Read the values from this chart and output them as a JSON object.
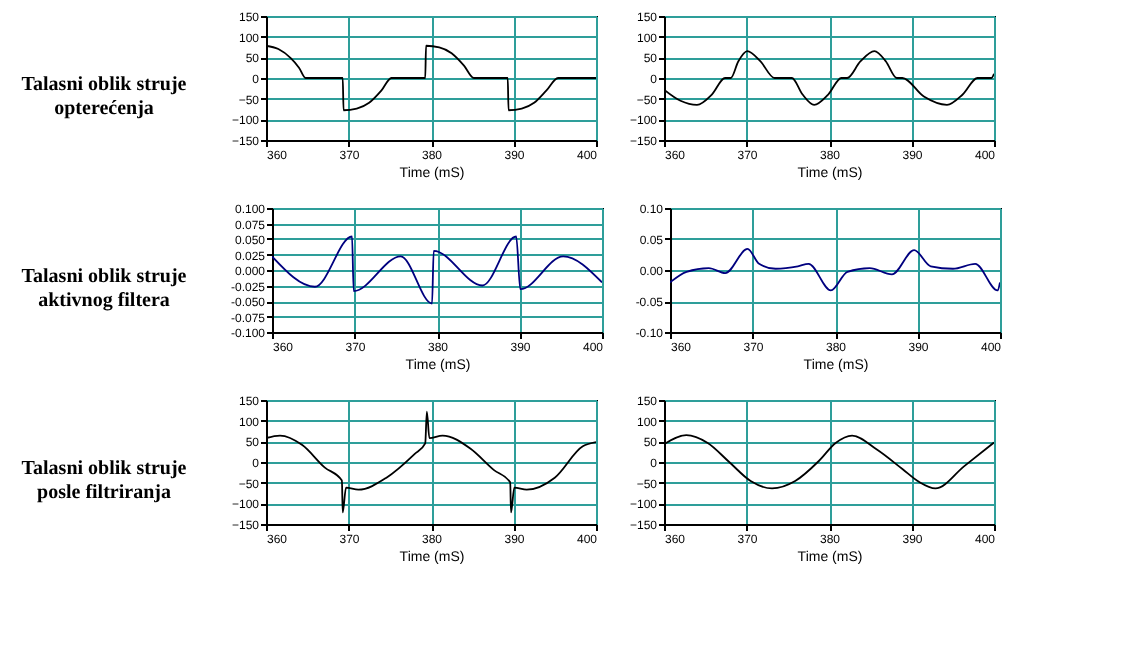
{
  "chart_data": [
    {
      "type": "other",
      "title": "Talasni oblik struje\nopterećenja"
    },
    {
      "type": "line",
      "xlabel": "Time (mS)",
      "color": "#000000",
      "grid": true,
      "xlim": [
        360,
        400
      ],
      "xticks": [
        360,
        370,
        380,
        390,
        400
      ],
      "ylim": [
        -150,
        150
      ],
      "yticks": [
        -150,
        -100,
        -50,
        0,
        50,
        100,
        150
      ],
      "x": [
        360,
        361.5,
        363,
        364,
        364.8,
        369.3,
        369.4,
        371,
        372.5,
        374,
        375.2,
        379.3,
        379.4,
        381,
        382.5,
        384,
        385.2,
        389.3,
        389.4,
        391,
        392.5,
        394,
        395.4,
        400
      ],
      "values": [
        78,
        70,
        48,
        25,
        0,
        0,
        -78,
        -74,
        -60,
        -30,
        0,
        0,
        78,
        74,
        60,
        30,
        0,
        0,
        -78,
        -74,
        -60,
        -30,
        0,
        0
      ]
    },
    {
      "type": "line",
      "xlabel": "Time (mS)",
      "color": "#000000",
      "grid": true,
      "xlim": [
        360,
        400
      ],
      "xticks": [
        360,
        370,
        380,
        390,
        400
      ],
      "ylim": [
        -150,
        150
      ],
      "yticks": [
        -150,
        -100,
        -50,
        0,
        50,
        100,
        150
      ],
      "x": [
        360,
        362,
        364,
        365.8,
        367.4,
        368.1,
        369,
        370.1,
        371.7,
        373.4,
        375.5,
        376.8,
        378.2,
        379.9,
        381.5,
        382.2,
        383.8,
        385.5,
        386.9,
        388.2,
        388.9,
        391.5,
        394.3,
        396.2,
        398,
        399.7,
        400
      ],
      "values": [
        -28,
        -55,
        -65,
        -40,
        0,
        0,
        40,
        65,
        40,
        0,
        0,
        -40,
        -65,
        -40,
        0,
        0,
        40,
        65,
        40,
        0,
        0,
        -45,
        -65,
        -40,
        0,
        0,
        10
      ]
    },
    {
      "type": "other",
      "title": "Talasni oblik struje\naktivnog filtera"
    },
    {
      "type": "line",
      "xlabel": "Time (mS)",
      "color": "#00007f",
      "grid": true,
      "xlim": [
        360,
        400
      ],
      "xticks": [
        360,
        370,
        380,
        390,
        400
      ],
      "ylim": [
        -0.1,
        0.1
      ],
      "yticks": [
        {
          "value": -0.1,
          "label": "-0.100"
        },
        {
          "value": -0.075,
          "label": "-0.075"
        },
        {
          "value": -0.05,
          "label": "-0.050"
        },
        {
          "value": -0.025,
          "label": "-0.025"
        },
        {
          "value": 0,
          "label": "0.000"
        },
        {
          "value": 0.025,
          "label": "0.025"
        },
        {
          "value": 0.05,
          "label": "0.050"
        },
        {
          "value": 0.075,
          "label": "0.075"
        },
        {
          "value": 0.1,
          "label": "0.100"
        }
      ],
      "x": [
        360,
        365.2,
        369.7,
        369.9,
        375.6,
        379.4,
        379.6,
        385.5,
        389.6,
        390.1,
        395.3,
        400
      ],
      "values": [
        0.022,
        -0.027,
        0.054,
        -0.034,
        0.022,
        -0.054,
        0.031,
        -0.025,
        0.054,
        -0.031,
        0.022,
        -0.02
      ]
    },
    {
      "type": "line",
      "xlabel": "Time (mS)",
      "color": "#00007f",
      "grid": true,
      "xlim": [
        360,
        400
      ],
      "xticks": [
        360,
        370,
        380,
        390,
        400
      ],
      "ylim": [
        -0.1,
        0.1
      ],
      "yticks": [
        {
          "value": -0.1,
          "label": "-0.10"
        },
        {
          "value": -0.05,
          "label": "-0.05"
        },
        {
          "value": 0,
          "label": "0.00"
        },
        {
          "value": 0.05,
          "label": "0.05"
        },
        {
          "value": 0.1,
          "label": "0.10"
        }
      ],
      "x": [
        360,
        362,
        364.7,
        366.7,
        369.4,
        370.8,
        372.8,
        375.5,
        376.8,
        379.5,
        381.5,
        384.2,
        386.9,
        389.6,
        391.6,
        394.3,
        397,
        399.7,
        400
      ],
      "values": [
        -0.02,
        -0.003,
        0.003,
        -0.005,
        0.034,
        0.01,
        0.002,
        0.006,
        0.01,
        -0.033,
        -0.003,
        0.003,
        -0.007,
        0.032,
        0.006,
        0.002,
        0.01,
        -0.033,
        -0.02
      ]
    },
    {
      "type": "other",
      "title": "Talasni oblik struje\nposle filtriranja"
    },
    {
      "type": "line",
      "xlabel": "Time (mS)",
      "color": "#000000",
      "grid": true,
      "xlim": [
        360,
        400
      ],
      "xticks": [
        360,
        370,
        380,
        390,
        400
      ],
      "ylim": [
        -150,
        150
      ],
      "yticks": [
        -150,
        -100,
        -50,
        0,
        50,
        100,
        150
      ],
      "x": [
        360,
        361.7,
        364.4,
        367.1,
        369.2,
        369.3,
        369.7,
        371.2,
        374.6,
        378,
        379.3,
        379.5,
        379.8,
        381.4,
        384.8,
        387.6,
        389.6,
        389.7,
        390.1,
        391.6,
        395,
        398.4,
        400
      ],
      "values": [
        58,
        64,
        41,
        -13,
        -45,
        -122,
        -62,
        -67,
        -38,
        19,
        45,
        122,
        58,
        64,
        32,
        -19,
        -49,
        -122,
        -62,
        -67,
        -38,
        38,
        48
      ]
    },
    {
      "type": "line",
      "xlabel": "Time (mS)",
      "color": "#000000",
      "grid": true,
      "xlim": [
        360,
        400
      ],
      "xticks": [
        360,
        370,
        380,
        390,
        400
      ],
      "ylim": [
        -150,
        150
      ],
      "yticks": [
        -150,
        -100,
        -50,
        0,
        50,
        100,
        150
      ],
      "x": [
        360,
        362.7,
        365.3,
        367.9,
        370.5,
        373.1,
        375.9,
        378.8,
        380.8,
        382.8,
        385.8,
        388.9,
        390.9,
        392.9,
        396.4,
        400
      ],
      "values": [
        43,
        65,
        46,
        0,
        -46,
        -64,
        -46,
        3,
        46,
        64,
        30,
        -17,
        -48,
        -64,
        -10,
        47
      ]
    }
  ]
}
